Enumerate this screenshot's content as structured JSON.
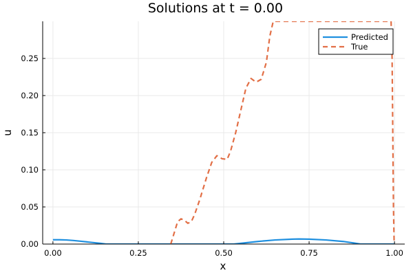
{
  "chart_data": {
    "type": "line",
    "title": "Solutions at t = 0.00",
    "xlabel": "x",
    "ylabel": "u",
    "xlim": [
      -0.03,
      1.03
    ],
    "ylim": [
      0.0,
      0.3
    ],
    "xticks": [
      0.0,
      0.25,
      0.5,
      0.75,
      1.0
    ],
    "xtick_labels": [
      "0.00",
      "0.25",
      "0.50",
      "0.75",
      "1.00"
    ],
    "yticks": [
      0.0,
      0.05,
      0.1,
      0.15,
      0.2,
      0.25
    ],
    "ytick_labels": [
      "0.00",
      "0.05",
      "0.10",
      "0.15",
      "0.20",
      "0.25"
    ],
    "grid": true,
    "legend_position": "top-right",
    "series": [
      {
        "name": "Predicted",
        "color": "#1e8fdf",
        "style": "solid",
        "points": [
          [
            0.0,
            0.0058
          ],
          [
            0.02,
            0.0058
          ],
          [
            0.04,
            0.0055
          ],
          [
            0.06,
            0.0048
          ],
          [
            0.08,
            0.0039
          ],
          [
            0.1,
            0.0029
          ],
          [
            0.12,
            0.0019
          ],
          [
            0.14,
            0.0009
          ],
          [
            0.155,
            0.0
          ],
          [
            0.2,
            0.0
          ],
          [
            0.3,
            0.0
          ],
          [
            0.4,
            0.0
          ],
          [
            0.5,
            0.0
          ],
          [
            0.53,
            0.0
          ],
          [
            0.56,
            0.0015
          ],
          [
            0.6,
            0.0035
          ],
          [
            0.65,
            0.0055
          ],
          [
            0.7,
            0.0066
          ],
          [
            0.72,
            0.0068
          ],
          [
            0.75,
            0.0066
          ],
          [
            0.8,
            0.0055
          ],
          [
            0.85,
            0.0035
          ],
          [
            0.88,
            0.0015
          ],
          [
            0.9,
            0.0
          ],
          [
            0.95,
            0.0
          ],
          [
            1.0,
            0.0
          ]
        ]
      },
      {
        "name": "True",
        "color": "#e26f46",
        "style": "dashed",
        "points": [
          [
            0.345,
            0.0
          ],
          [
            0.355,
            0.015
          ],
          [
            0.365,
            0.03
          ],
          [
            0.375,
            0.034
          ],
          [
            0.385,
            0.032
          ],
          [
            0.395,
            0.028
          ],
          [
            0.405,
            0.03
          ],
          [
            0.415,
            0.04
          ],
          [
            0.43,
            0.06
          ],
          [
            0.45,
            0.09
          ],
          [
            0.465,
            0.11
          ],
          [
            0.48,
            0.119
          ],
          [
            0.495,
            0.115
          ],
          [
            0.51,
            0.114
          ],
          [
            0.52,
            0.125
          ],
          [
            0.535,
            0.15
          ],
          [
            0.55,
            0.18
          ],
          [
            0.565,
            0.21
          ],
          [
            0.58,
            0.223
          ],
          [
            0.595,
            0.218
          ],
          [
            0.61,
            0.222
          ],
          [
            0.625,
            0.245
          ],
          [
            0.635,
            0.28
          ],
          [
            0.645,
            0.3
          ],
          [
            0.99,
            0.3
          ],
          [
            0.993,
            0.25
          ],
          [
            0.995,
            0.15
          ],
          [
            0.997,
            0.05
          ],
          [
            0.999,
            0.0
          ]
        ]
      }
    ]
  }
}
